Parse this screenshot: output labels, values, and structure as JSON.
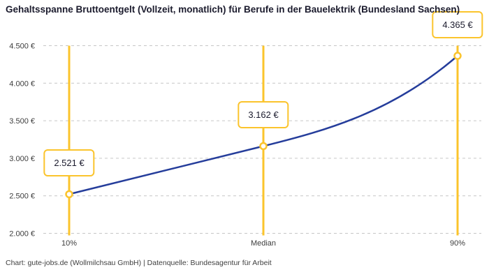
{
  "title": "Gehaltsspanne Bruttoentgelt (Vollzeit, monatlich) für Berufe in der Bauelektrik (Bundesland Sachsen)",
  "attribution": "Chart: gute-jobs.de (Wollmilchsau GmbH) | Datenquelle: Bundesagentur für Arbeit",
  "colors": {
    "accent_yellow": "#FBC42C",
    "line_blue": "#253D9B",
    "grid_gray": "#C6C6C6",
    "title_text": "#1B1B2D",
    "tick_text": "#3D3D3D",
    "point_fill": "#FFFFFF"
  },
  "chart_data": {
    "type": "line",
    "title": "Gehaltsspanne Bruttoentgelt (Vollzeit, monatlich) für Berufe in der Bauelektrik (Bundesland Sachsen)",
    "categories": [
      "10%",
      "Median",
      "90%"
    ],
    "values": [
      2521,
      3162,
      4365
    ],
    "value_labels": [
      "2.521 €",
      "3.162 €",
      "4.365 €"
    ],
    "ylim": [
      2000,
      4500
    ],
    "y_ticks": [
      {
        "value": 4500,
        "label": "4.500 €"
      },
      {
        "value": 4000,
        "label": "4.000 €"
      },
      {
        "value": 3500,
        "label": "3.500 €"
      },
      {
        "value": 3000,
        "label": "3.000 €"
      },
      {
        "value": 2500,
        "label": "2.500 €"
      },
      {
        "value": 2000,
        "label": "2.000 €"
      }
    ],
    "xlabel": "",
    "ylabel": "",
    "grid": "horizontal-dashed",
    "legend": "none",
    "markers": "open-circles-on-vertical-percentile-lines"
  }
}
